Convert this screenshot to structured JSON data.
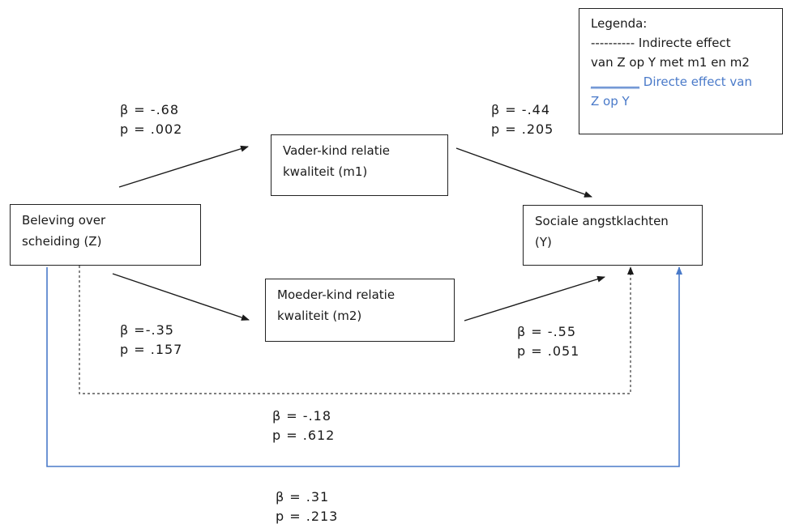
{
  "nodes": {
    "z": {
      "line1": "Beleving over",
      "line2": "scheiding (Z)"
    },
    "m1": {
      "line1": "Vader-kind relatie",
      "line2": "kwaliteit (m1)"
    },
    "m2": {
      "line1": "Moeder-kind relatie",
      "line2": "kwaliteit (m2)"
    },
    "y": {
      "line1": "Sociale angstklachten",
      "line2": "(Y)"
    }
  },
  "paths": {
    "z_m1": {
      "beta": "β = -.68",
      "p": "p = .002"
    },
    "m1_y": {
      "beta": "β = -.44",
      "p": "p = .205"
    },
    "z_m2": {
      "beta": "β =-.35",
      "p": "p = .157"
    },
    "m2_y": {
      "beta": "β = -.55",
      "p": "p = .051"
    },
    "indirect": {
      "beta": "β = -.18",
      "p": "p = .612"
    },
    "direct": {
      "beta": "β = .31",
      "p": "p = .213"
    }
  },
  "legend": {
    "title": "Legenda:",
    "indirect_marker": "----------",
    "indirect_line1": "Indirecte effect",
    "indirect_line2": "van Z op Y met m1 en m2",
    "direct_marker": "________",
    "direct_line1": "Directe effect van",
    "direct_line2": "Z op Y"
  },
  "colors": {
    "direct": "#4a7ac9",
    "line": "#1a1a1a",
    "indirect": "#555555"
  }
}
